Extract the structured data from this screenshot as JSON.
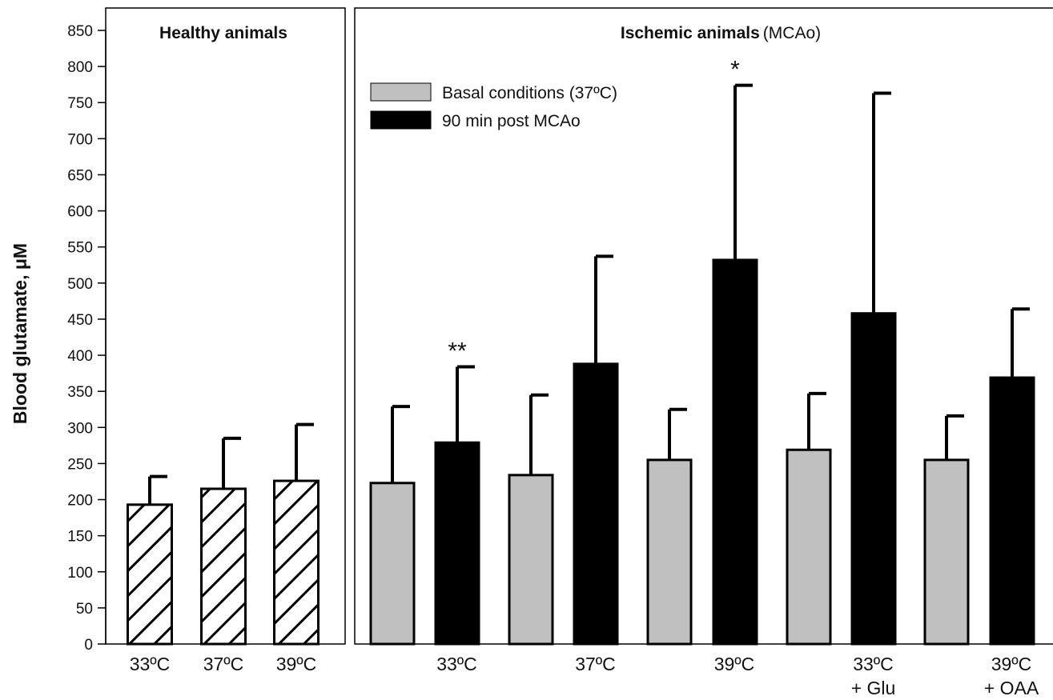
{
  "chart_data": {
    "type": "bar",
    "ylabel": "Blood  glutamate, μM",
    "ylim": [
      0,
      850
    ],
    "yticks": [
      0,
      50,
      100,
      150,
      200,
      250,
      300,
      350,
      400,
      450,
      500,
      550,
      600,
      650,
      700,
      750,
      800,
      850
    ],
    "grid": false,
    "legend": {
      "placement": "top-left of ischemic panel",
      "entries": [
        {
          "key": "basal",
          "label": "Basal conditions (37ºC)",
          "color": "#c0c0c0"
        },
        {
          "key": "post",
          "label": "90 min post MCAo",
          "color": "#000000"
        }
      ]
    },
    "panels": [
      {
        "id": "healthy",
        "title": "Healthy animals",
        "title_suffix": "",
        "bars": [
          {
            "category": "33ºC",
            "group": "healthy",
            "value": 193,
            "error": 39
          },
          {
            "category": "37ºC",
            "group": "healthy",
            "value": 215,
            "error": 70
          },
          {
            "category": "39ºC",
            "group": "healthy",
            "value": 226,
            "error": 78
          }
        ],
        "category_labels": [
          {
            "lines": [
              "33ºC"
            ],
            "bars": [
              0
            ]
          },
          {
            "lines": [
              "37ºC"
            ],
            "bars": [
              1
            ]
          },
          {
            "lines": [
              "39ºC"
            ],
            "bars": [
              2
            ]
          }
        ]
      },
      {
        "id": "ischemic",
        "title": "Ischemic animals",
        "title_suffix": "(MCAo)",
        "bars": [
          {
            "category": "33ºC",
            "group": "basal",
            "value": 223,
            "error": 106
          },
          {
            "category": "33ºC",
            "group": "post",
            "value": 279,
            "error": 105,
            "annotation": "**"
          },
          {
            "category": "37ºC",
            "group": "basal",
            "value": 234,
            "error": 111
          },
          {
            "category": "37ºC",
            "group": "post",
            "value": 388,
            "error": 149
          },
          {
            "category": "39ºC",
            "group": "basal",
            "value": 255,
            "error": 70
          },
          {
            "category": "39ºC",
            "group": "post",
            "value": 532,
            "error": 242,
            "annotation": "*"
          },
          {
            "category": "33ºC + Glu",
            "group": "basal",
            "value": 269,
            "error": 78
          },
          {
            "category": "33ºC + Glu",
            "group": "post",
            "value": 458,
            "error": 305
          },
          {
            "category": "39ºC + OAA",
            "group": "basal",
            "value": 255,
            "error": 61
          },
          {
            "category": "39ºC + OAA",
            "group": "post",
            "value": 369,
            "error": 95
          }
        ],
        "category_labels": [
          {
            "lines": [
              "33ºC"
            ],
            "bars": [
              0,
              1
            ]
          },
          {
            "lines": [
              "37ºC"
            ],
            "bars": [
              2,
              3
            ]
          },
          {
            "lines": [
              "39ºC"
            ],
            "bars": [
              4,
              5
            ]
          },
          {
            "lines": [
              "33ºC",
              "+ Glu"
            ],
            "bars": [
              6,
              7
            ]
          },
          {
            "lines": [
              "39ºC",
              "+ OAA"
            ],
            "bars": [
              8,
              9
            ]
          }
        ]
      }
    ],
    "colors": {
      "basal": "#c0c0c0",
      "post": "#000000",
      "healthy": "hatched",
      "stroke": "#000000"
    }
  }
}
